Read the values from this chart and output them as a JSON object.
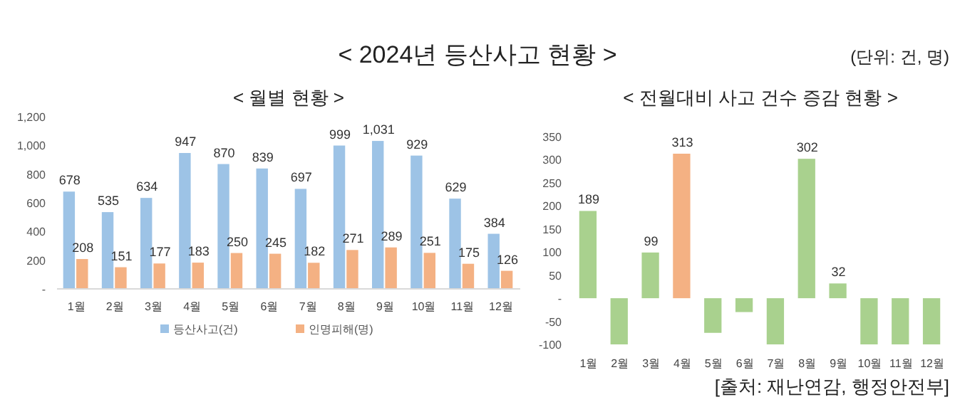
{
  "chart_data": [
    {
      "type": "bar",
      "title": "< 월별 현황 >",
      "annotations": [
        "< 2024년 등산사고 현황 >",
        "(단위: 건, 명)"
      ],
      "categories": [
        "1월",
        "2월",
        "3월",
        "4월",
        "5월",
        "6월",
        "7월",
        "8월",
        "9월",
        "10월",
        "11월",
        "12월"
      ],
      "series": [
        {
          "name": "등산사고(건)",
          "color": "#9dc3e6",
          "values": [
            678,
            535,
            634,
            947,
            870,
            839,
            697,
            999,
            1031,
            929,
            629,
            384
          ],
          "value_labels": [
            "678",
            "535",
            "634",
            "947",
            "870",
            "839",
            "697",
            "999",
            "1,031",
            "929",
            "629",
            "384"
          ]
        },
        {
          "name": "인명피해(명)",
          "color": "#f4b183",
          "values": [
            208,
            151,
            177,
            183,
            250,
            245,
            182,
            271,
            289,
            251,
            175,
            126
          ],
          "value_labels": [
            "208",
            "151",
            "177",
            "183",
            "250",
            "245",
            "182",
            "271",
            "289",
            "251",
            "175",
            "126"
          ]
        }
      ],
      "ylim": [
        0,
        1200
      ],
      "yticks": [
        {
          "value": 0,
          "label": "-"
        },
        200,
        400,
        600,
        800,
        {
          "value": 1000,
          "label": "1,000"
        },
        {
          "value": 1200,
          "label": "1,200"
        }
      ],
      "grid": false,
      "legend": "bottom"
    },
    {
      "type": "bar",
      "title": "< 전월대비 사고 건수 증감 현황 >",
      "annotations": [
        "[출처: 재난연감, 행정안전부]"
      ],
      "categories": [
        "1월",
        "2월",
        "3월",
        "4월",
        "5월",
        "6월",
        "7월",
        "8월",
        "9월",
        "10월",
        "11월",
        "12월"
      ],
      "values": [
        189,
        -100,
        99,
        313,
        -75,
        -30,
        -100,
        302,
        32,
        -100,
        -100,
        -100
      ],
      "colors": [
        "#a9d18e",
        "#a9d18e",
        "#a9d18e",
        "#f4b183",
        "#a9d18e",
        "#a9d18e",
        "#a9d18e",
        "#a9d18e",
        "#a9d18e",
        "#a9d18e",
        "#a9d18e",
        "#a9d18e"
      ],
      "value_labels": [
        "189",
        null,
        "99",
        "313",
        null,
        null,
        null,
        "302",
        "32",
        null,
        null,
        null
      ],
      "ylim": [
        -100,
        350
      ],
      "yticks": [
        {
          "value": -100,
          "label": "-100"
        },
        {
          "value": -50,
          "label": "-50"
        },
        {
          "value": 0,
          "label": "-"
        },
        50,
        100,
        150,
        200,
        250,
        300,
        350
      ],
      "grid": false,
      "legend": false
    }
  ]
}
